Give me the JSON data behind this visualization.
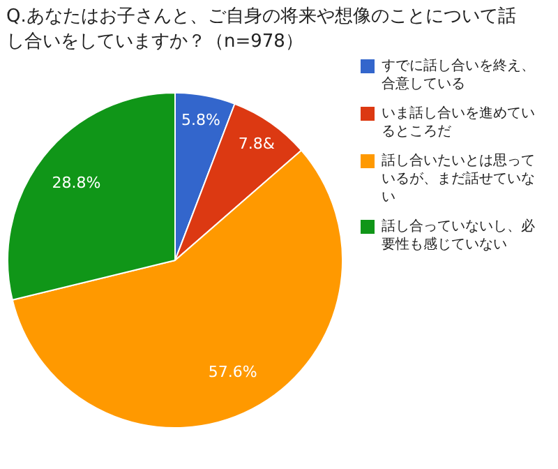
{
  "chart_data": {
    "type": "pie",
    "title": "Q.あなたはお子さんと、ご自身の将来や想像のことについて話し合いをしていますか？（n=978）",
    "categories": [
      "すでに話し合いを終え、合意している",
      "いま話し合いを進めているところだ",
      "話し合いたいとは思っているが、まだ話せていない",
      "話し合っていないし、必要性も感じていない"
    ],
    "values": [
      5.8,
      7.8,
      57.6,
      28.8
    ],
    "colors": [
      "#3366cc",
      "#dc3912",
      "#ff9900",
      "#109618"
    ],
    "value_labels": [
      "5.8%",
      "7.8&",
      "57.6%",
      "28.8%"
    ],
    "legend": "right"
  }
}
